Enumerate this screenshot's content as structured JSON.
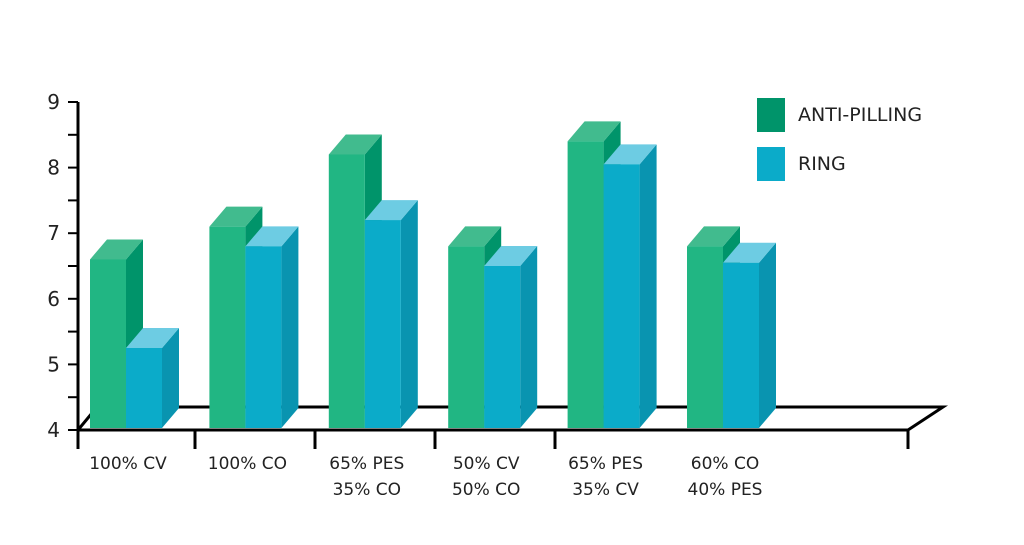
{
  "chart_data": {
    "type": "bar",
    "title": "",
    "xlabel": "",
    "ylabel": "",
    "ylim": [
      4,
      9
    ],
    "yticks": [
      "4",
      "5",
      "6",
      "7",
      "8",
      "9"
    ],
    "categories": [
      [
        "100% CV"
      ],
      [
        "100% CO"
      ],
      [
        "65% PES",
        "35% CO"
      ],
      [
        "50% CV",
        "50% CO"
      ],
      [
        "65% PES",
        "35% CV"
      ],
      [
        "60% CO",
        "40% PES"
      ]
    ],
    "series": [
      {
        "name": "ANTI-PILLING",
        "values": [
          6.6,
          7.1,
          8.2,
          6.8,
          8.4,
          6.8
        ],
        "color": "#21b683",
        "top": "#41bb8e",
        "side": "#00946a",
        "legend": "#00946a"
      },
      {
        "name": "RING",
        "values": [
          5.25,
          6.8,
          7.2,
          6.5,
          8.05,
          6.55
        ],
        "color": "#0babc9",
        "top": "#6dcce3",
        "side": "#0994b0",
        "legend": "#0babc9"
      }
    ],
    "legend_position": "top-right",
    "grid": false
  }
}
